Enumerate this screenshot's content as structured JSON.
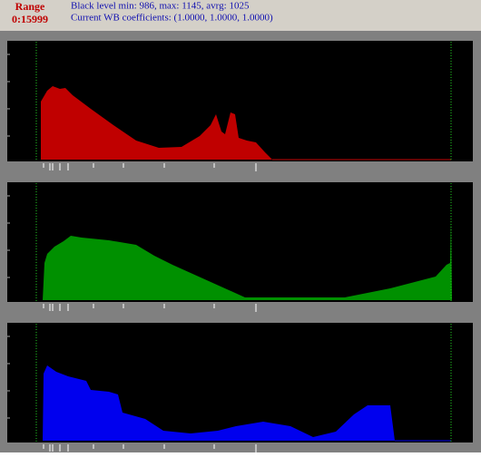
{
  "header": {
    "range_label": "Range",
    "range_value": "0:15999",
    "black_level": "Black level min: 986, max: 1145, avrg: 1025",
    "wb_coefficients": "Current WB coefficients: (1.0000, 1.0000, 1.0000)"
  }
}
